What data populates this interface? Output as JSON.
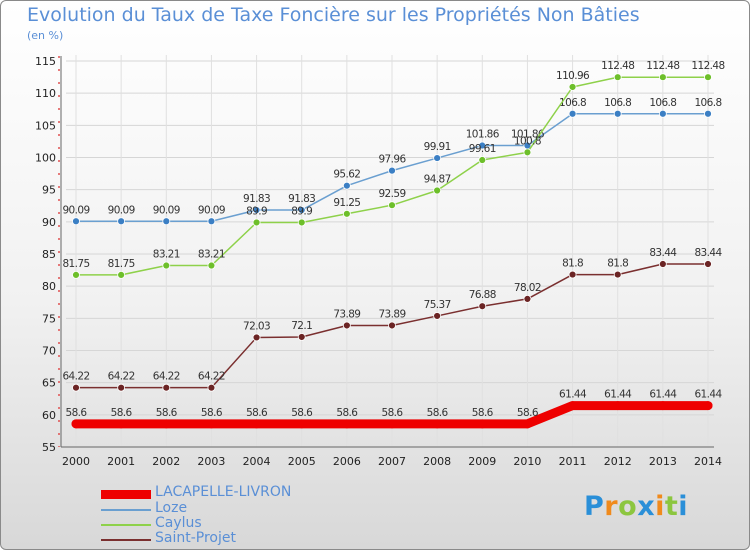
{
  "header": {
    "title": "Evolution du Taux de Taxe Foncière sur les Propriétés Non Bâties",
    "unit": "(en %)"
  },
  "brand": {
    "letters": [
      "P",
      "r",
      "o",
      "x",
      "i",
      "t",
      "i"
    ],
    "colors": [
      "#2a8fd8",
      "#f08a1c",
      "#8cc63f",
      "#2a8fd8",
      "#f08a1c",
      "#8cc63f",
      "#2a8fd8"
    ]
  },
  "chart_data": {
    "type": "line",
    "title": "Evolution du Taux de Taxe Foncière sur les Propriétés Non Bâties",
    "ylabel": "(en %)",
    "xlabel": "",
    "ylim": [
      55,
      115
    ],
    "yticks": [
      55,
      60,
      65,
      70,
      75,
      80,
      85,
      90,
      95,
      100,
      105,
      110,
      115
    ],
    "grid": true,
    "legend_position": "bottom-left",
    "x": [
      "2000",
      "2001",
      "2002",
      "2003",
      "2004",
      "2005",
      "2006",
      "2007",
      "2008",
      "2009",
      "2010",
      "2011",
      "2012",
      "2013",
      "2014"
    ],
    "series": [
      {
        "name": "LACAPELLE-LIVRON",
        "color": "#ee0000",
        "width": 9,
        "markers": false,
        "values": [
          58.6,
          58.6,
          58.6,
          58.6,
          58.6,
          58.6,
          58.6,
          58.6,
          58.6,
          58.6,
          58.6,
          61.44,
          61.44,
          61.44,
          61.44
        ],
        "labels": [
          "58.6",
          "58.6",
          "58.6",
          "58.6",
          "58.6",
          "58.6",
          "58.6",
          "58.6",
          "58.6",
          "58.6",
          "58.6",
          "61.44",
          "61.44",
          "61.44",
          "61.44"
        ]
      },
      {
        "name": "Loze",
        "color": "#6a9fd0",
        "marker_color": "#3b7fc4",
        "width": 1.5,
        "markers": true,
        "values": [
          90.09,
          90.09,
          90.09,
          90.09,
          91.83,
          91.83,
          95.62,
          97.96,
          99.91,
          101.86,
          101.86,
          106.8,
          106.8,
          106.8,
          106.8
        ],
        "labels": [
          "90.09",
          "90.09",
          "90.09",
          "90.09",
          "91.83",
          "91.83",
          "95.62",
          "97.96",
          "99.91",
          "101.86",
          "101.86",
          "106.8",
          "106.8",
          "106.8",
          "106.8"
        ]
      },
      {
        "name": "Caylus",
        "color": "#8ed14a",
        "marker_color": "#6dbf2a",
        "width": 1.5,
        "markers": true,
        "values": [
          81.75,
          81.75,
          83.21,
          83.21,
          89.9,
          89.9,
          91.25,
          92.59,
          94.87,
          99.61,
          100.8,
          110.96,
          112.48,
          112.48,
          112.48
        ],
        "labels": [
          "81.75",
          "81.75",
          "83.21",
          "83.21",
          "89.9",
          "89.9",
          "91.25",
          "92.59",
          "94.87",
          "99.61",
          "100.8",
          "110.96",
          "112.48",
          "112.48",
          "112.48"
        ]
      },
      {
        "name": "Saint-Projet",
        "color": "#7a2f2f",
        "marker_color": "#6b2424",
        "width": 1.5,
        "markers": true,
        "values": [
          64.22,
          64.22,
          64.22,
          64.22,
          72.03,
          72.1,
          73.89,
          73.89,
          75.37,
          76.88,
          78.02,
          81.8,
          81.8,
          83.44,
          83.44
        ],
        "labels": [
          "64.22",
          "64.22",
          "64.22",
          "64.22",
          "72.03",
          "72.1",
          "73.89",
          "73.89",
          "75.37",
          "76.88",
          "78.02",
          "81.8",
          "81.8",
          "83.44",
          "83.44"
        ]
      }
    ]
  }
}
